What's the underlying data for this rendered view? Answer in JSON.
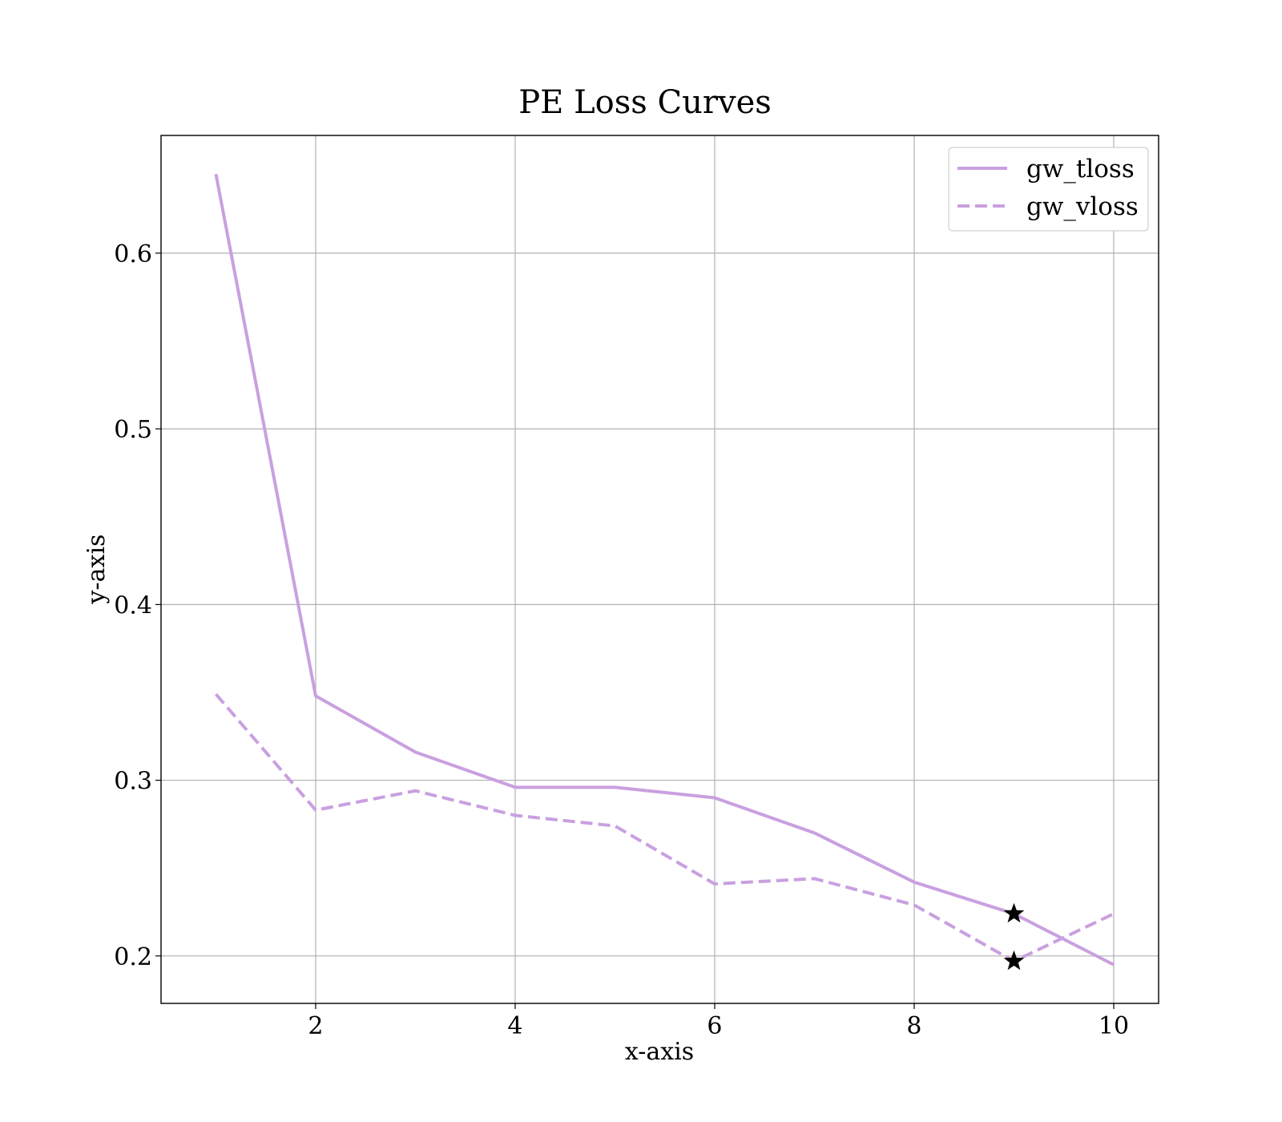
{
  "chart_data": {
    "type": "line",
    "title": "PE Loss Curves",
    "xlabel": "x-axis",
    "ylabel": "y-axis",
    "xlim": [
      0.45,
      10.45
    ],
    "ylim": [
      0.173,
      0.667
    ],
    "xticks": [
      2,
      4,
      6,
      8,
      10
    ],
    "yticks": [
      0.2,
      0.3,
      0.4,
      0.5,
      0.6
    ],
    "xtick_labels": [
      "2",
      "4",
      "6",
      "8",
      "10"
    ],
    "ytick_labels": [
      "0.2",
      "0.3",
      "0.4",
      "0.5",
      "0.6"
    ],
    "grid": true,
    "legend_position": "top-right",
    "x": [
      1,
      2,
      3,
      4,
      5,
      6,
      7,
      8,
      9,
      10
    ],
    "series": [
      {
        "name": "gw_tloss",
        "style": "solid",
        "color": "#c9a0e0",
        "values": [
          0.645,
          0.348,
          0.316,
          0.296,
          0.296,
          0.29,
          0.27,
          0.242,
          0.224,
          0.195
        ]
      },
      {
        "name": "gw_vloss",
        "style": "dashed",
        "color": "#c9a0e0",
        "values": [
          0.349,
          0.283,
          0.294,
          0.28,
          0.274,
          0.241,
          0.244,
          0.229,
          0.197,
          0.224
        ]
      }
    ],
    "markers": [
      {
        "series": "gw_tloss",
        "x": 9,
        "y": 0.224,
        "shape": "star",
        "color": "#000000"
      },
      {
        "series": "gw_vloss",
        "x": 9,
        "y": 0.197,
        "shape": "star",
        "color": "#000000"
      }
    ]
  }
}
